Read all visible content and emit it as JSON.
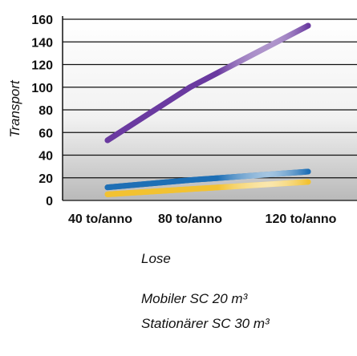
{
  "chart_data": {
    "type": "line",
    "title": "",
    "xlabel": "",
    "ylabel": "Transport",
    "categories": [
      "40 to/anno",
      "80 to/anno",
      "120 to/anno"
    ],
    "ylim": [
      0,
      160
    ],
    "yticks": [
      0,
      20,
      40,
      60,
      80,
      100,
      120,
      140,
      160
    ],
    "grid": true,
    "legend_position": "bottom",
    "series": [
      {
        "name": "Lose",
        "values": [
          49,
          100,
          151
        ],
        "color": "#6a3aa0"
      },
      {
        "name": "Mobiler SC 20 m³",
        "values": [
          11,
          18,
          25
        ],
        "color": "#1e6fb5"
      },
      {
        "name": "Stationärer SC 30 m³",
        "values": [
          5,
          10,
          16
        ],
        "color": "#f2c232"
      }
    ]
  }
}
